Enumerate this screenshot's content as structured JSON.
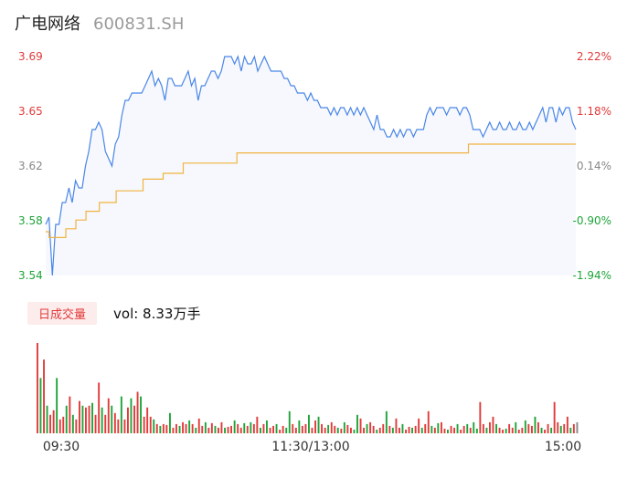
{
  "stock": {
    "name": "广电网络",
    "code": "600831.SH"
  },
  "volume_tab": {
    "label": "日成交量",
    "value_text": "vol: 8.33万手"
  },
  "colors": {
    "price": "#4a86e8",
    "avg": "#f0b340",
    "up": "#e23a3a",
    "down": "#1ea43a",
    "neutral": "#888888"
  },
  "chart_data": [
    {
      "type": "line",
      "title": "",
      "y_left_ticks": [
        "3.69",
        "3.65",
        "3.62",
        "3.58",
        "3.54"
      ],
      "y_right_ticks": [
        "2.22%",
        "1.18%",
        "0.14%",
        "-0.90%",
        "-1.94%"
      ],
      "x_ticks": [
        "09:30",
        "11:30/13:00",
        "15:00"
      ],
      "ylim": [
        3.54,
        3.69
      ],
      "series": [
        {
          "key": "price",
          "values": [
            3.575,
            3.58,
            3.54,
            3.575,
            3.575,
            3.59,
            3.59,
            3.6,
            3.59,
            3.605,
            3.6,
            3.6,
            3.615,
            3.625,
            3.64,
            3.64,
            3.645,
            3.64,
            3.625,
            3.62,
            3.615,
            3.63,
            3.635,
            3.65,
            3.66,
            3.66,
            3.665,
            3.665,
            3.665,
            3.665,
            3.67,
            3.675,
            3.68,
            3.67,
            3.675,
            3.67,
            3.66,
            3.675,
            3.675,
            3.67,
            3.67,
            3.67,
            3.675,
            3.68,
            3.67,
            3.675,
            3.66,
            3.67,
            3.67,
            3.675,
            3.68,
            3.68,
            3.675,
            3.68,
            3.69,
            3.69,
            3.69,
            3.685,
            3.69,
            3.68,
            3.69,
            3.685,
            3.685,
            3.69,
            3.68,
            3.685,
            3.69,
            3.685,
            3.68,
            3.68,
            3.68,
            3.68,
            3.675,
            3.675,
            3.67,
            3.67,
            3.665,
            3.665,
            3.665,
            3.66,
            3.665,
            3.66,
            3.66,
            3.655,
            3.655,
            3.655,
            3.65,
            3.655,
            3.65,
            3.655,
            3.655,
            3.65,
            3.655,
            3.65,
            3.655,
            3.65,
            3.655,
            3.65,
            3.645,
            3.64,
            3.65,
            3.64,
            3.64,
            3.635,
            3.635,
            3.64,
            3.635,
            3.64,
            3.635,
            3.64,
            3.64,
            3.635,
            3.64,
            3.64,
            3.64,
            3.65,
            3.655,
            3.65,
            3.655,
            3.655,
            3.655,
            3.65,
            3.655,
            3.655,
            3.655,
            3.65,
            3.655,
            3.655,
            3.65,
            3.64,
            3.64,
            3.64,
            3.635,
            3.64,
            3.645,
            3.64,
            3.64,
            3.645,
            3.64,
            3.64,
            3.645,
            3.64,
            3.64,
            3.645,
            3.64,
            3.64,
            3.645,
            3.64,
            3.645,
            3.65,
            3.655,
            3.645,
            3.655,
            3.655,
            3.645,
            3.655,
            3.65,
            3.655,
            3.655,
            3.645,
            3.64
          ]
        },
        {
          "key": "avg",
          "values": [
            3.57,
            3.566,
            3.566,
            3.566,
            3.566,
            3.566,
            3.572,
            3.572,
            3.572,
            3.578,
            3.578,
            3.578,
            3.584,
            3.584,
            3.584,
            3.584,
            3.59,
            3.59,
            3.59,
            3.59,
            3.59,
            3.598,
            3.598,
            3.598,
            3.598,
            3.598,
            3.598,
            3.598,
            3.598,
            3.606,
            3.606,
            3.606,
            3.606,
            3.606,
            3.606,
            3.61,
            3.61,
            3.61,
            3.61,
            3.61,
            3.61,
            3.617,
            3.617,
            3.617,
            3.617,
            3.617,
            3.617,
            3.617,
            3.617,
            3.617,
            3.617,
            3.617,
            3.617,
            3.617,
            3.617,
            3.617,
            3.617,
            3.624,
            3.624,
            3.624,
            3.624,
            3.624,
            3.624,
            3.624,
            3.624,
            3.624,
            3.624,
            3.624,
            3.624,
            3.624,
            3.624,
            3.624,
            3.624,
            3.624,
            3.624,
            3.624,
            3.624,
            3.624,
            3.624,
            3.624,
            3.624,
            3.624,
            3.624,
            3.624,
            3.624,
            3.624,
            3.624,
            3.624,
            3.624,
            3.624,
            3.624,
            3.624,
            3.624,
            3.624,
            3.624,
            3.624,
            3.624,
            3.624,
            3.624,
            3.624,
            3.624,
            3.624,
            3.624,
            3.624,
            3.624,
            3.624,
            3.624,
            3.624,
            3.624,
            3.624,
            3.624,
            3.624,
            3.624,
            3.624,
            3.624,
            3.624,
            3.624,
            3.624,
            3.624,
            3.624,
            3.624,
            3.624,
            3.624,
            3.624,
            3.624,
            3.624,
            3.63,
            3.63,
            3.63,
            3.63,
            3.63,
            3.63,
            3.63,
            3.63,
            3.63,
            3.63,
            3.63,
            3.63,
            3.63,
            3.63,
            3.63,
            3.63,
            3.63,
            3.63,
            3.63,
            3.63,
            3.63,
            3.63,
            3.63,
            3.63,
            3.63,
            3.63,
            3.63,
            3.63,
            3.63,
            3.63,
            3.63,
            3.63,
            3.63
          ]
        }
      ]
    },
    {
      "type": "bar",
      "title": "",
      "values": [
        98,
        60,
        80,
        30,
        20,
        25,
        60,
        15,
        18,
        30,
        40,
        20,
        15,
        35,
        30,
        28,
        30,
        33,
        20,
        55,
        28,
        20,
        38,
        30,
        22,
        15,
        40,
        15,
        28,
        38,
        30,
        45,
        40,
        18,
        28,
        18,
        15,
        10,
        8,
        10,
        9,
        22,
        6,
        10,
        8,
        12,
        10,
        14,
        10,
        6,
        16,
        8,
        12,
        6,
        11,
        8,
        6,
        12,
        6,
        7,
        8,
        14,
        10,
        6,
        11,
        8,
        12,
        10,
        18,
        6,
        10,
        14,
        6,
        8,
        10,
        4,
        8,
        6,
        24,
        10,
        6,
        14,
        8,
        10,
        20,
        6,
        14,
        18,
        10,
        6,
        9,
        12,
        8,
        6,
        5,
        12,
        9,
        6,
        4,
        20,
        16,
        6,
        10,
        12,
        8,
        4,
        6,
        10,
        24,
        8,
        6,
        16,
        6,
        10,
        4,
        7,
        6,
        8,
        16,
        6,
        10,
        24,
        8,
        6,
        11,
        12,
        5,
        4,
        8,
        6,
        10,
        4,
        8,
        10,
        6,
        12,
        5,
        34,
        10,
        6,
        12,
        18,
        10,
        6,
        4,
        5,
        10,
        6,
        12,
        4,
        6,
        14,
        10,
        8,
        18,
        12,
        6,
        4,
        10,
        6,
        34,
        12,
        8,
        10,
        18,
        6,
        10,
        12
      ],
      "colors": [
        "up",
        "down",
        "up",
        "down",
        "up",
        "up",
        "down",
        "up",
        "up",
        "down",
        "up",
        "down",
        "up",
        "up",
        "down",
        "up",
        "up",
        "down",
        "up",
        "up",
        "down",
        "up",
        "up",
        "down",
        "up",
        "up",
        "down",
        "up",
        "up",
        "down",
        "up",
        "up",
        "down",
        "up",
        "up",
        "up",
        "down",
        "up",
        "down",
        "up",
        "up",
        "down",
        "up",
        "up",
        "down",
        "up",
        "up",
        "down",
        "up",
        "down",
        "up",
        "up",
        "down",
        "up",
        "up",
        "down",
        "up",
        "up",
        "down",
        "up",
        "up",
        "down",
        "up",
        "up",
        "down",
        "up",
        "down",
        "up",
        "up",
        "down",
        "up",
        "down",
        "up",
        "up",
        "down",
        "up",
        "up",
        "down",
        "down",
        "up",
        "up",
        "down",
        "up",
        "up",
        "down",
        "up",
        "up",
        "down",
        "up",
        "up",
        "down",
        "up",
        "up",
        "down",
        "up",
        "down",
        "up",
        "up",
        "down",
        "down",
        "up",
        "up",
        "down",
        "up",
        "up",
        "down",
        "up",
        "up",
        "down",
        "up",
        "down",
        "up",
        "up",
        "down",
        "up",
        "up",
        "down",
        "up",
        "up",
        "down",
        "up",
        "up",
        "down",
        "up",
        "down",
        "up",
        "up",
        "down",
        "up",
        "up",
        "down",
        "up",
        "up",
        "down",
        "up",
        "down",
        "down",
        "up",
        "up",
        "down",
        "up",
        "up",
        "down",
        "up",
        "up",
        "down",
        "up",
        "up",
        "down",
        "up",
        "up",
        "down",
        "up",
        "up",
        "down",
        "up",
        "down",
        "up",
        "up",
        "down",
        "up",
        "up",
        "down",
        "up",
        "up",
        "down",
        "up",
        "neutral"
      ]
    }
  ]
}
